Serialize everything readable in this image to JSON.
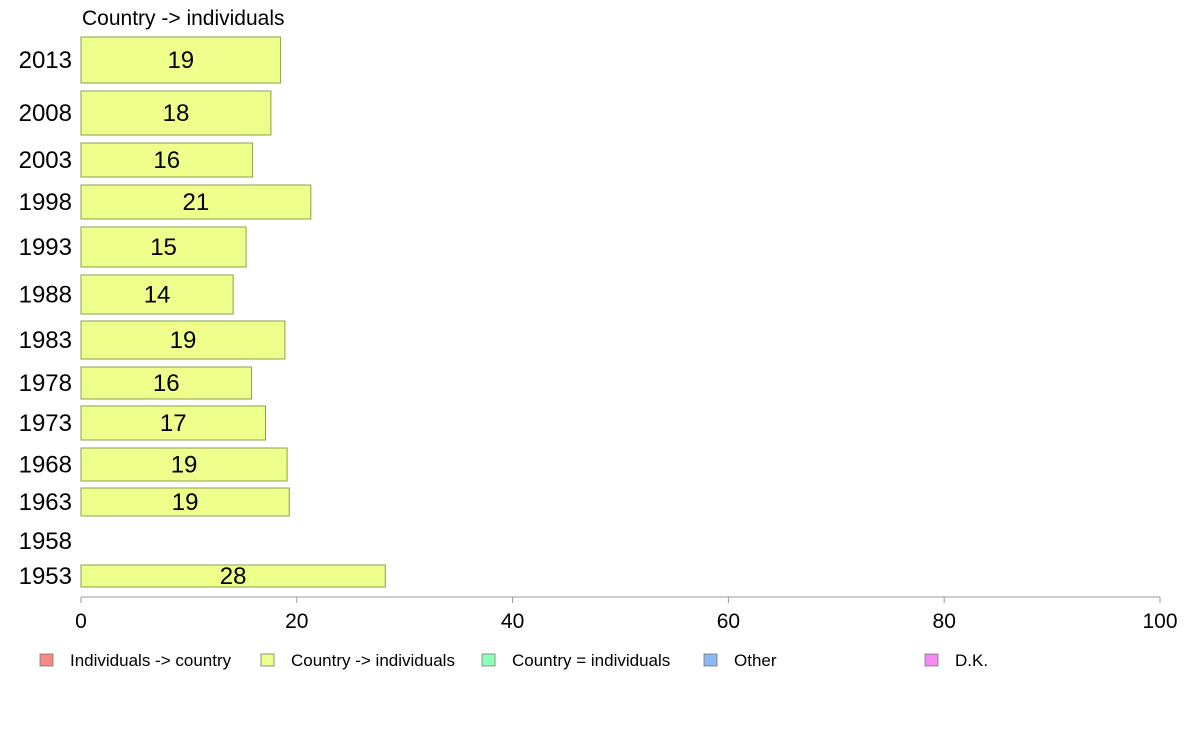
{
  "chart_data": {
    "type": "bar",
    "orientation": "horizontal",
    "title": "Country -> individuals",
    "categories": [
      "2013",
      "2008",
      "2003",
      "1998",
      "1993",
      "1988",
      "1983",
      "1978",
      "1973",
      "1968",
      "1963",
      "1958",
      "1953"
    ],
    "series": [
      {
        "name": "Country -> individuals",
        "color": "#eeff8c",
        "values": [
          19,
          18,
          16,
          21,
          15,
          14,
          19,
          16,
          17,
          19,
          19,
          null,
          28
        ]
      }
    ],
    "bar_value_precision": {
      "2013": 18.5,
      "2008": 17.6,
      "2003": 15.9,
      "1998": 21.3,
      "1993": 15.3,
      "1988": 14.1,
      "1983": 18.9,
      "1978": 15.8,
      "1973": 17.1,
      "1968": 19.1,
      "1963": 19.3,
      "1953": 28.2
    },
    "xlim": [
      0,
      100
    ],
    "x_ticks": [
      "0",
      "20",
      "40",
      "60",
      "80",
      "100"
    ],
    "grid": false,
    "legend_position": "bottom",
    "legend": [
      {
        "label": "Individuals -> country",
        "color": "#f58a80"
      },
      {
        "label": "Country -> individuals",
        "color": "#eeff8c"
      },
      {
        "label": "Country = individuals",
        "color": "#8cffb8"
      },
      {
        "label": "Other",
        "color": "#8cb8f5"
      },
      {
        "label": "D.K.",
        "color": "#f58af0"
      }
    ],
    "bar_border_color": "#8aa050",
    "axis_color": "#999999"
  }
}
